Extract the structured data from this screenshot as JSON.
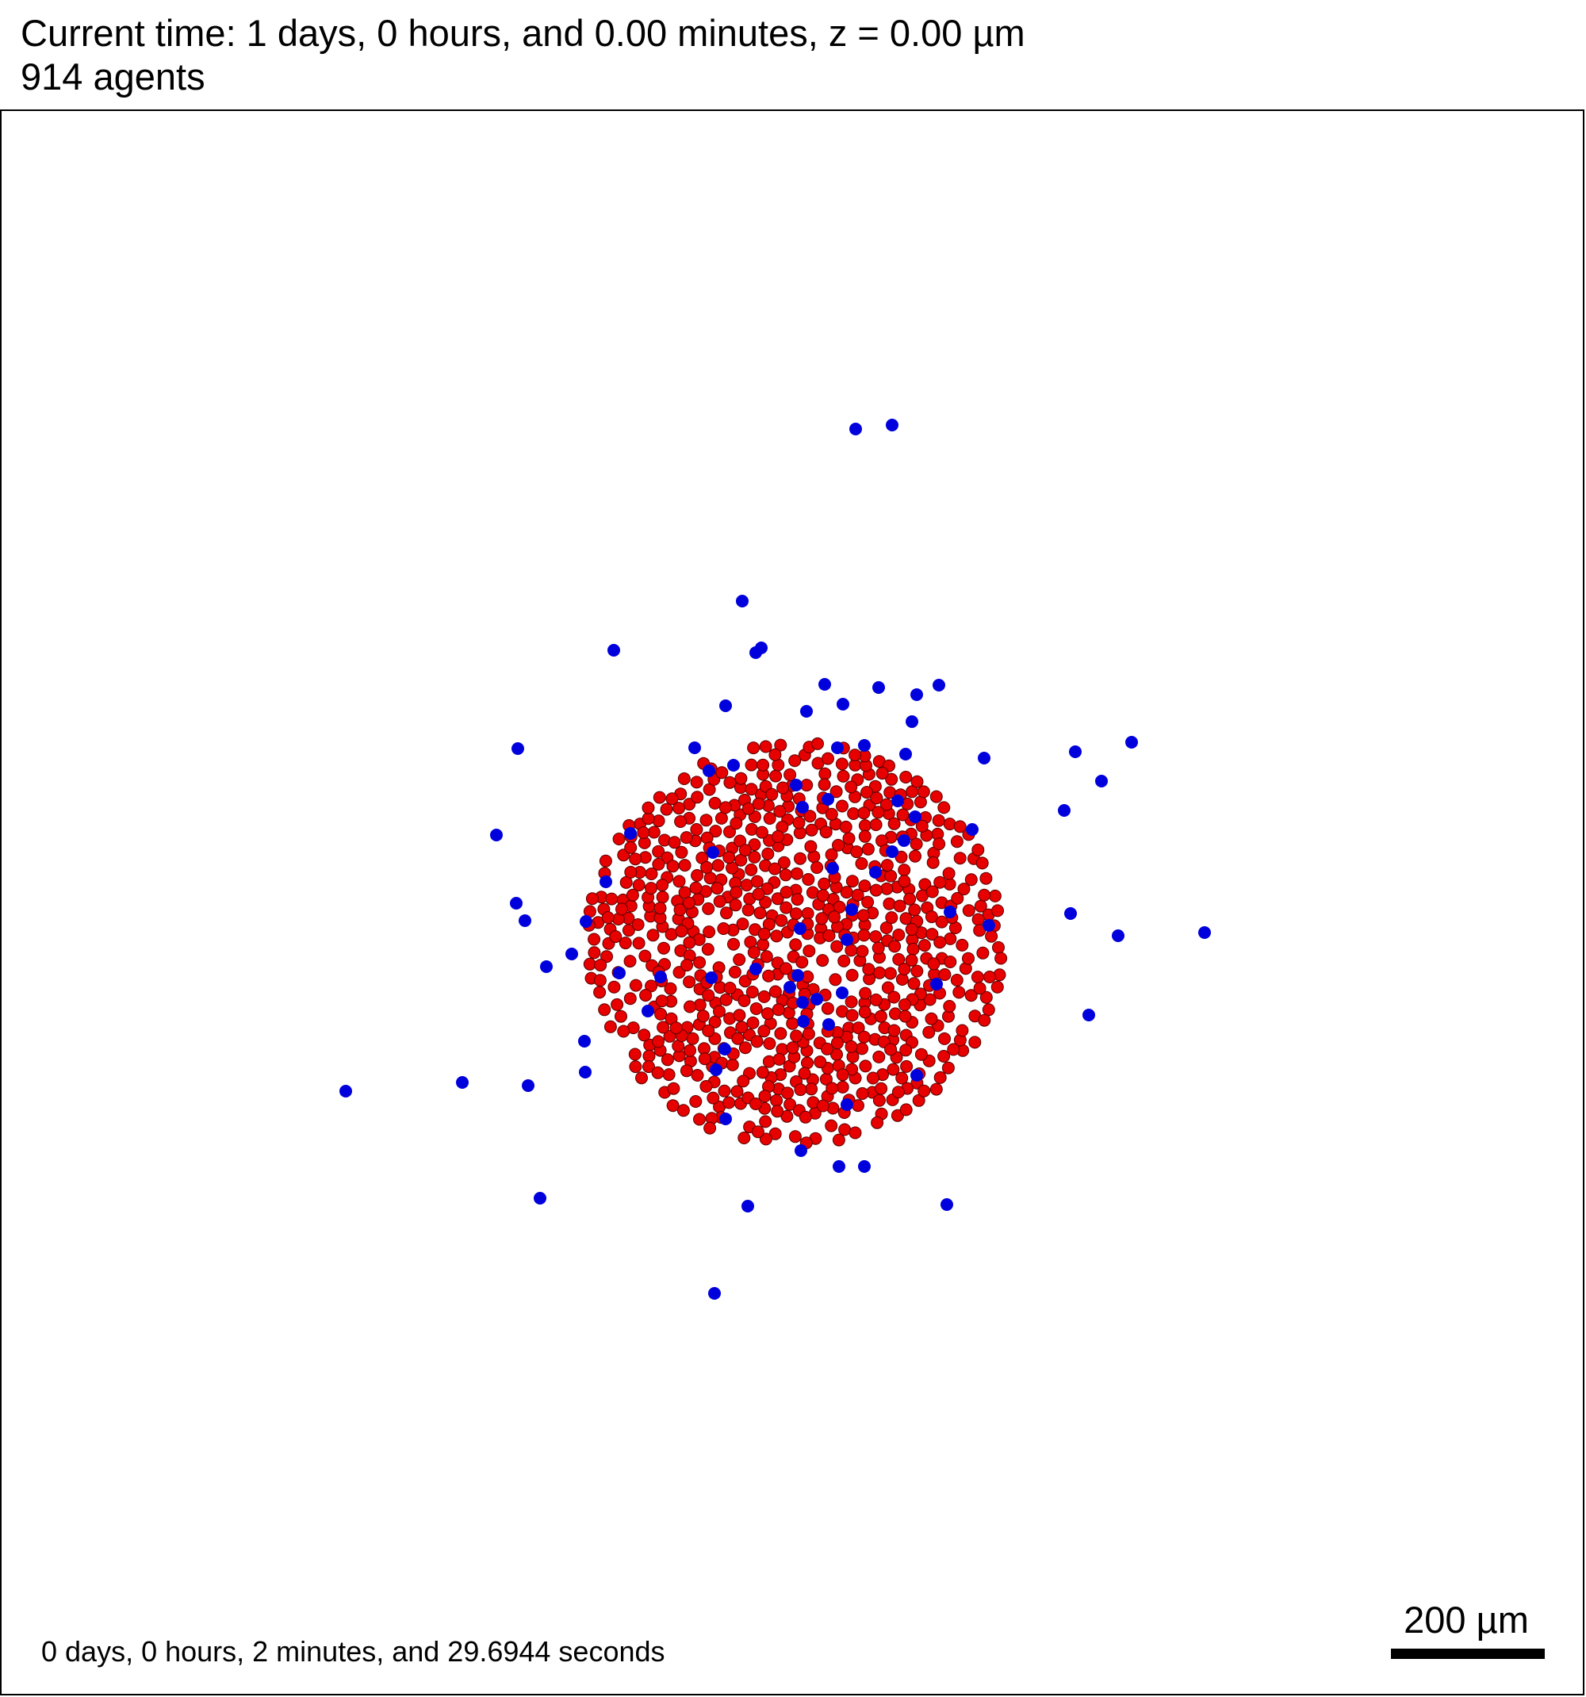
{
  "header": {
    "time_line": "Current time: 1 days, 0 hours, and 0.00 minutes, z = 0.00 µm",
    "agents_line": "914 agents"
  },
  "footer": {
    "elapsed_label": "0 days, 0 hours, 2 minutes, and 29.6944 seconds",
    "scale_bar_label": "200 µm",
    "scale_bar_length_um": 200
  },
  "colors": {
    "red_cell_fill": "#e60000",
    "red_cell_stroke": "#5a0000",
    "blue_cell_fill": "#0000dd",
    "frame_border": "#000000"
  },
  "legend": []
}
